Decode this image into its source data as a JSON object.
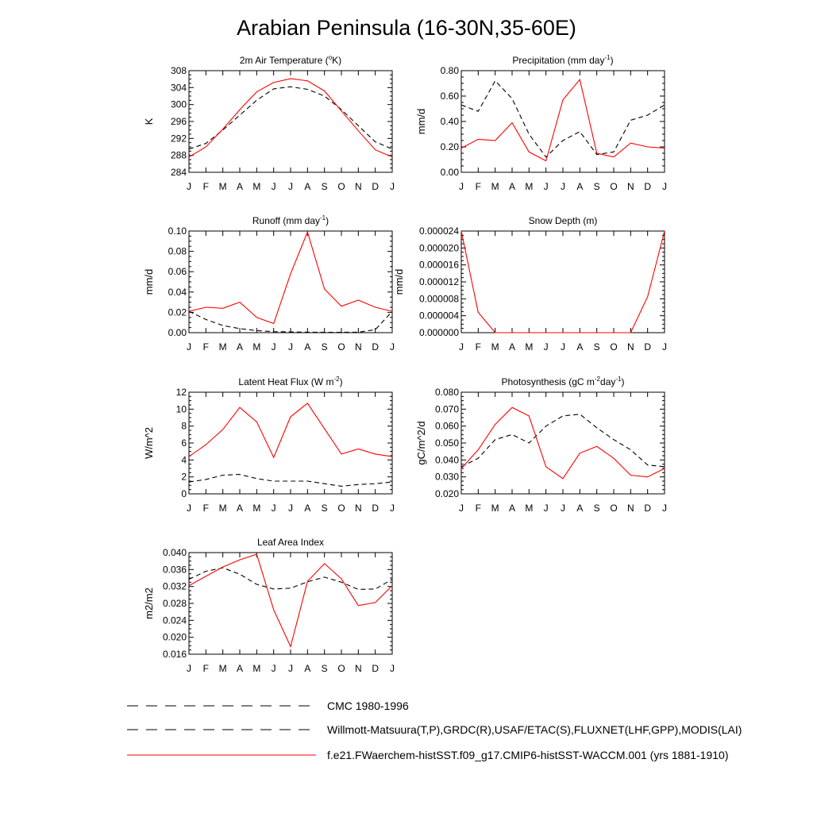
{
  "figure": {
    "title": "Arabian Peninsula (16-30N,35-60E)",
    "months": [
      "J",
      "F",
      "M",
      "A",
      "M",
      "J",
      "J",
      "A",
      "S",
      "O",
      "N",
      "D",
      "J"
    ]
  },
  "chart_data": [
    {
      "id": "temp",
      "type": "line",
      "title": "2m Air Temperature (°K)",
      "title_parts": {
        "pre": "2m Air Temperature (",
        "sup": "o",
        "post": "K)"
      },
      "ylabel": "K",
      "ylim": [
        284,
        308
      ],
      "yticks": [
        "284",
        "288",
        "292",
        "296",
        "300",
        "304",
        "308"
      ],
      "series": [
        {
          "name": "CMC 1980-1996",
          "color": "#000000",
          "dash": true,
          "values": [
            289.5,
            290.8,
            294.0,
            297.5,
            301.0,
            303.7,
            304.2,
            303.6,
            302.0,
            298.8,
            295.0,
            291.2,
            289.5
          ]
        },
        {
          "name": "f.e21.FWaerchem-histSST.f09_g17.CMIP6-histSST-WACCM.001 (yrs 1881-1910)",
          "color": "#ff0000",
          "dash": false,
          "values": [
            287.6,
            290.0,
            294.2,
            298.8,
            303.0,
            305.2,
            306.1,
            305.6,
            303.2,
            298.5,
            293.8,
            289.3,
            287.6
          ]
        }
      ]
    },
    {
      "id": "precip",
      "type": "line",
      "title": "Precipitation (mm day-1)",
      "title_parts": {
        "pre": "Precipitation (mm day",
        "sup": "-1",
        "post": ")"
      },
      "ylabel": "mm/d",
      "ylim": [
        0,
        0.8
      ],
      "yticks": [
        "0.00",
        "0.20",
        "0.40",
        "0.60",
        "0.80"
      ],
      "series": [
        {
          "name": "Willmott-Matsuura(T,P),GRDC(R),USAF/ETAC(S),FLUXNET(LHF,GPP),MODIS(LAI)",
          "color": "#000000",
          "dash": true,
          "values": [
            0.53,
            0.48,
            0.72,
            0.58,
            0.3,
            0.12,
            0.25,
            0.32,
            0.14,
            0.16,
            0.41,
            0.45,
            0.53
          ]
        },
        {
          "name": "f.e21.FWaerchem-histSST.f09_g17.CMIP6-histSST-WACCM.001 (yrs 1881-1910)",
          "color": "#ff0000",
          "dash": false,
          "values": [
            0.19,
            0.26,
            0.25,
            0.39,
            0.16,
            0.09,
            0.57,
            0.73,
            0.15,
            0.12,
            0.23,
            0.2,
            0.19
          ]
        }
      ]
    },
    {
      "id": "runoff",
      "type": "line",
      "title": "Runoff (mm day-1)",
      "title_parts": {
        "pre": "Runoff (mm day",
        "sup": "-1",
        "post": ")"
      },
      "ylabel": "mm/d",
      "ylim": [
        0,
        0.1
      ],
      "yticks": [
        "0.00",
        "0.02",
        "0.04",
        "0.06",
        "0.08",
        "0.10"
      ],
      "series": [
        {
          "name": "Willmott-Matsuura(T,P),GRDC(R),USAF/ETAC(S),FLUXNET(LHF,GPP),MODIS(LAI)",
          "color": "#000000",
          "dash": true,
          "values": [
            0.021,
            0.013,
            0.007,
            0.004,
            0.002,
            0.001,
            0.0008,
            0.0005,
            0.0004,
            0.0004,
            0.0005,
            0.003,
            0.021
          ]
        },
        {
          "name": "f.e21.FWaerchem-histSST.f09_g17.CMIP6-histSST-WACCM.001 (yrs 1881-1910)",
          "color": "#ff0000",
          "dash": false,
          "values": [
            0.021,
            0.025,
            0.024,
            0.03,
            0.015,
            0.009,
            0.058,
            0.099,
            0.043,
            0.026,
            0.032,
            0.025,
            0.021
          ]
        }
      ]
    },
    {
      "id": "snow",
      "type": "line",
      "title": "Snow Depth (m)",
      "title_parts": {
        "pre": "Snow Depth (m)",
        "sup": "",
        "post": ""
      },
      "ylabel": "mm/d",
      "ylim": [
        0,
        2.4e-05
      ],
      "yticks": [
        "0.000000",
        "0.000004",
        "0.000008",
        "0.000012",
        "0.000016",
        "0.000020",
        "0.000024"
      ],
      "series": [
        {
          "name": "CMC 1980-1996",
          "color": "#000000",
          "dash": true,
          "values": [
            0,
            0,
            0,
            0,
            0,
            0,
            0,
            0,
            0,
            0,
            0,
            0,
            0
          ]
        },
        {
          "name": "f.e21.FWaerchem-histSST.f09_g17.CMIP6-histSST-WACCM.001 (yrs 1881-1910)",
          "color": "#ff0000",
          "dash": false,
          "values": [
            2.4e-05,
            4.8e-06,
            0,
            0,
            0,
            0,
            0,
            0,
            0,
            0,
            0,
            8.5e-06,
            2.4e-05
          ]
        }
      ]
    },
    {
      "id": "lhf",
      "type": "line",
      "title": "Latent Heat Flux (W m-2)",
      "title_parts": {
        "pre": "Latent Heat Flux (W m",
        "sup": "-2",
        "post": ")"
      },
      "ylabel": "W/m^2",
      "ylim": [
        0,
        12
      ],
      "yticks": [
        "0",
        "2",
        "4",
        "6",
        "8",
        "10",
        "12"
      ],
      "series": [
        {
          "name": "Willmott-Matsuura(T,P),GRDC(R),USAF/ETAC(S),FLUXNET(LHF,GPP),MODIS(LAI)",
          "color": "#000000",
          "dash": true,
          "values": [
            1.4,
            1.7,
            2.2,
            2.3,
            1.8,
            1.5,
            1.5,
            1.5,
            1.2,
            0.9,
            1.1,
            1.2,
            1.4
          ]
        },
        {
          "name": "f.e21.FWaerchem-histSST.f09_g17.CMIP6-histSST-WACCM.001 (yrs 1881-1910)",
          "color": "#ff0000",
          "dash": false,
          "values": [
            4.4,
            5.8,
            7.6,
            10.2,
            8.5,
            4.3,
            9.1,
            10.7,
            7.7,
            4.7,
            5.3,
            4.7,
            4.4
          ]
        }
      ]
    },
    {
      "id": "gpp",
      "type": "line",
      "title": "Photosynthesis (gC m-2day-1)",
      "title_parts": {
        "pre": "Photosynthesis (gC m",
        "sup": "-2",
        "post": "day",
        "sup2": "-1",
        "post2": ")"
      },
      "ylabel": "gC/m^2/d",
      "ylim": [
        0.02,
        0.08
      ],
      "yticks": [
        "0.020",
        "0.030",
        "0.040",
        "0.050",
        "0.060",
        "0.070",
        "0.080"
      ],
      "series": [
        {
          "name": "Willmott-Matsuura(T,P),GRDC(R),USAF/ETAC(S),FLUXNET(LHF,GPP),MODIS(LAI)",
          "color": "#000000",
          "dash": true,
          "values": [
            0.036,
            0.041,
            0.052,
            0.055,
            0.05,
            0.06,
            0.066,
            0.067,
            0.059,
            0.052,
            0.046,
            0.037,
            0.036
          ]
        },
        {
          "name": "f.e21.FWaerchem-histSST.f09_g17.CMIP6-histSST-WACCM.001 (yrs 1881-1910)",
          "color": "#ff0000",
          "dash": false,
          "values": [
            0.035,
            0.046,
            0.061,
            0.071,
            0.066,
            0.036,
            0.029,
            0.044,
            0.048,
            0.041,
            0.031,
            0.03,
            0.035
          ]
        }
      ]
    },
    {
      "id": "lai",
      "type": "line",
      "title": "Leaf Area Index",
      "title_parts": {
        "pre": "Leaf Area Index",
        "sup": "",
        "post": ""
      },
      "ylabel": "m2/m2",
      "ylim": [
        0.016,
        0.04
      ],
      "yticks": [
        "0.016",
        "0.020",
        "0.024",
        "0.028",
        "0.032",
        "0.036",
        "0.040"
      ],
      "series": [
        {
          "name": "Willmott-Matsuura(T,P),GRDC(R),USAF/ETAC(S),FLUXNET(LHF,GPP),MODIS(LAI)",
          "color": "#000000",
          "dash": true,
          "values": [
            0.0337,
            0.0356,
            0.0364,
            0.0349,
            0.0325,
            0.0314,
            0.0316,
            0.0331,
            0.0342,
            0.033,
            0.0313,
            0.0314,
            0.0337
          ]
        },
        {
          "name": "f.e21.FWaerchem-histSST.f09_g17.CMIP6-histSST-WACCM.001 (yrs 1881-1910)",
          "color": "#ff0000",
          "dash": false,
          "values": [
            0.0322,
            0.0344,
            0.0366,
            0.0383,
            0.0396,
            0.0265,
            0.0178,
            0.0332,
            0.0374,
            0.0338,
            0.0275,
            0.0282,
            0.0322
          ]
        }
      ]
    }
  ],
  "legend": [
    {
      "label": "CMC 1980-1996",
      "style": "dashed",
      "color": "#000000"
    },
    {
      "label": "Willmott-Matsuura(T,P),GRDC(R),USAF/ETAC(S),FLUXNET(LHF,GPP),MODIS(LAI)",
      "style": "dashed",
      "color": "#000000"
    },
    {
      "label": "f.e21.FWaerchem-histSST.f09_g17.CMIP6-histSST-WACCM.001 (yrs 1881-1910)",
      "style": "solid",
      "color": "#ff0000"
    }
  ]
}
